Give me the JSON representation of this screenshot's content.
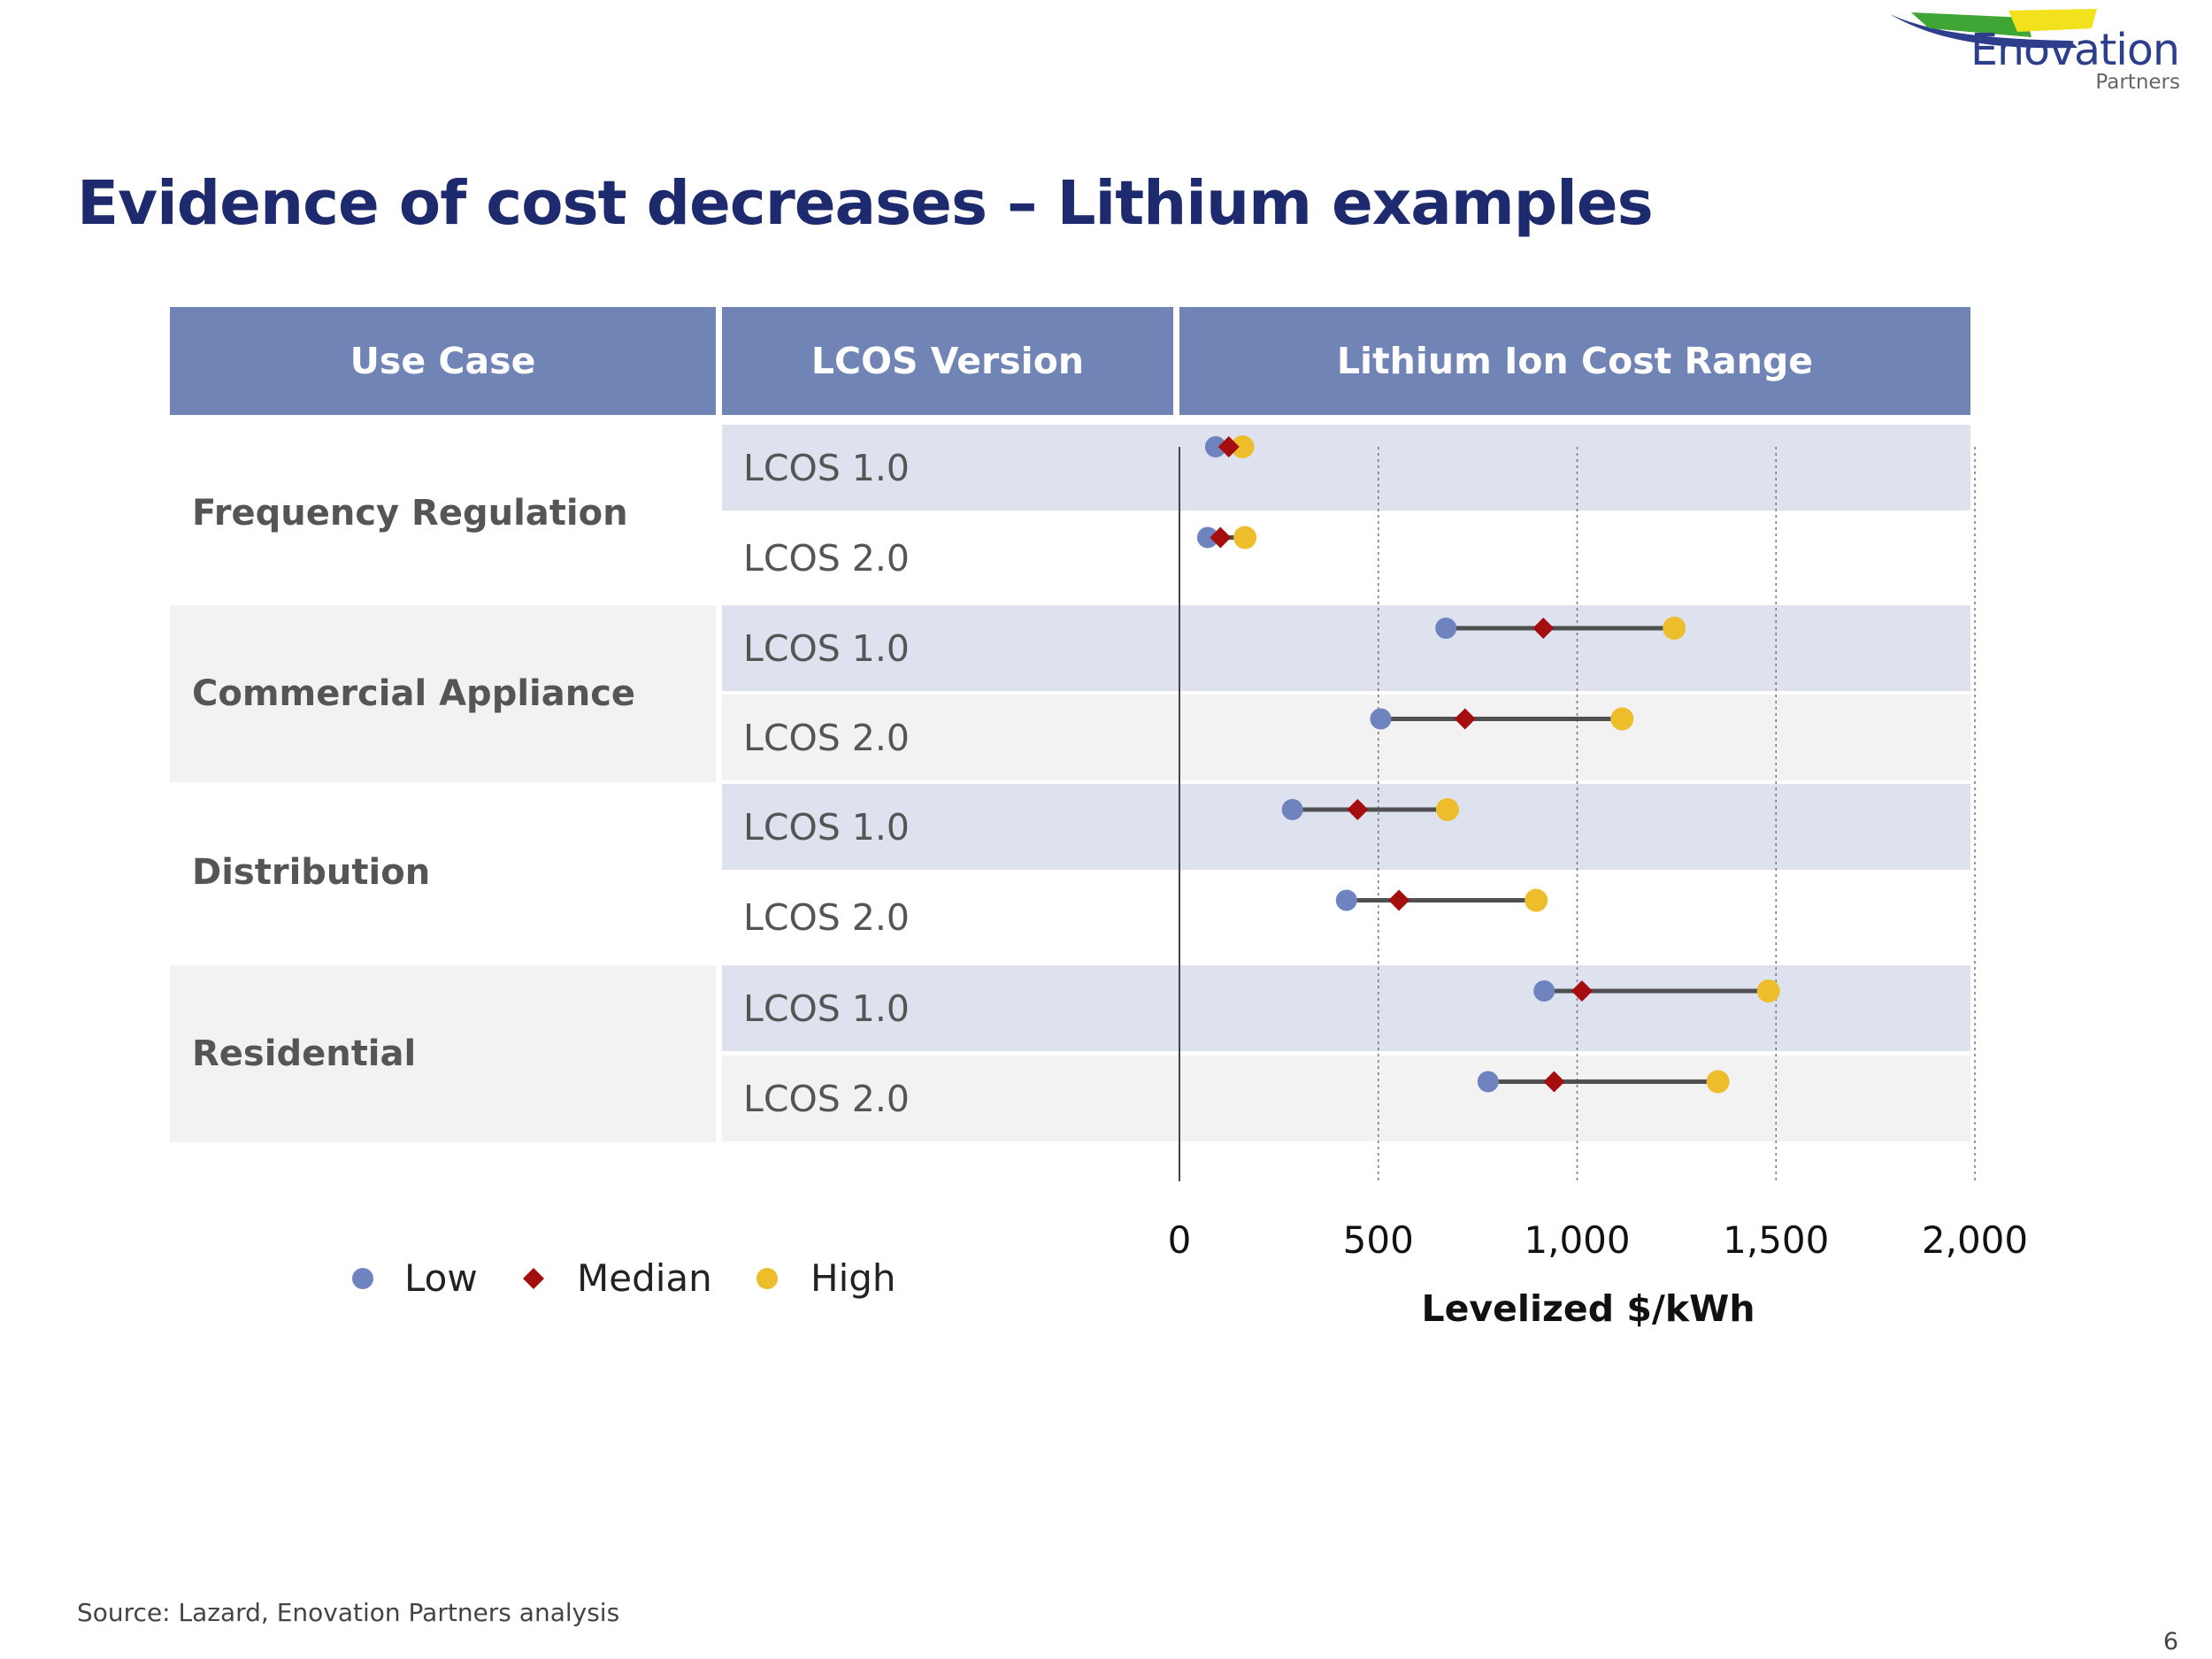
{
  "logo": {
    "name": "Enovation",
    "sub": "Partners"
  },
  "title": "Evidence of cost decreases – Lithium examples",
  "table": {
    "headers": [
      "Use Case",
      "LCOS Version",
      "Lithium Ion Cost Range"
    ],
    "use_cases": [
      "Frequency Regulation",
      "Commercial Appliance",
      "Distribution",
      "Residential"
    ],
    "versions": [
      "LCOS 1.0",
      "LCOS 2.0",
      "LCOS 1.0",
      "LCOS 2.0",
      "LCOS 1.0",
      "LCOS 2.0",
      "LCOS 1.0",
      "LCOS 2.0"
    ]
  },
  "chart_data": {
    "type": "dot-range",
    "xlabel": "Levelized $/kWh",
    "xlim": [
      0,
      2000
    ],
    "xticks": [
      "0",
      "500",
      "1,000",
      "1,500",
      "2,000"
    ],
    "xtick_values": [
      0,
      500,
      1000,
      1500,
      2000
    ],
    "grid": "vertical dotted",
    "legend": [
      "Low",
      "Median",
      "High"
    ],
    "legend_position": "bottom-left",
    "colors": {
      "Low": "#6f84be",
      "Median": "#a50e0e",
      "High": "#eebd2c",
      "range_line": "#505050",
      "header": "#7184b6",
      "row_blue": "#dde2ee",
      "row_gray": "#f2f2f2"
    },
    "rows": [
      {
        "use_case": "Frequency Regulation",
        "version": "LCOS 1.0",
        "low": 91,
        "median": 124,
        "high": 159
      },
      {
        "use_case": "Frequency Regulation",
        "version": "LCOS 2.0",
        "low": 71,
        "median": 103,
        "high": 165
      },
      {
        "use_case": "Commercial Appliance",
        "version": "LCOS 1.0",
        "low": 670,
        "median": 915,
        "high": 1244
      },
      {
        "use_case": "Commercial Appliance",
        "version": "LCOS 2.0",
        "low": 506,
        "median": 718,
        "high": 1113
      },
      {
        "use_case": "Distribution",
        "version": "LCOS 1.0",
        "low": 284,
        "median": 448,
        "high": 674
      },
      {
        "use_case": "Distribution",
        "version": "LCOS 2.0",
        "low": 420,
        "median": 552,
        "high": 897
      },
      {
        "use_case": "Residential",
        "version": "LCOS 1.0",
        "low": 917,
        "median": 1012,
        "high": 1481
      },
      {
        "use_case": "Residential",
        "version": "LCOS 2.0",
        "low": 776,
        "median": 942,
        "high": 1354
      }
    ]
  },
  "footer": {
    "source": "Source: Lazard, Enovation Partners analysis",
    "page": "6"
  }
}
